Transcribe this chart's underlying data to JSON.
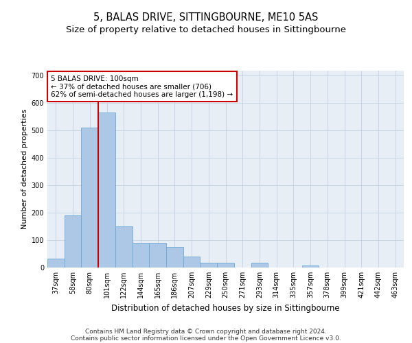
{
  "title": "5, BALAS DRIVE, SITTINGBOURNE, ME10 5AS",
  "subtitle": "Size of property relative to detached houses in Sittingbourne",
  "xlabel": "Distribution of detached houses by size in Sittingbourne",
  "ylabel": "Number of detached properties",
  "categories": [
    "37sqm",
    "58sqm",
    "80sqm",
    "101sqm",
    "122sqm",
    "144sqm",
    "165sqm",
    "186sqm",
    "207sqm",
    "229sqm",
    "250sqm",
    "271sqm",
    "293sqm",
    "314sqm",
    "335sqm",
    "357sqm",
    "378sqm",
    "399sqm",
    "421sqm",
    "442sqm",
    "463sqm"
  ],
  "values": [
    32,
    190,
    510,
    565,
    150,
    90,
    90,
    75,
    40,
    18,
    18,
    0,
    18,
    0,
    0,
    8,
    0,
    0,
    0,
    0,
    0
  ],
  "bar_color": "#adc8e6",
  "bar_edge_color": "#6aaad4",
  "vline_color": "#cc0000",
  "vline_x_index": 3,
  "annotation_text": "5 BALAS DRIVE: 100sqm\n← 37% of detached houses are smaller (706)\n62% of semi-detached houses are larger (1,198) →",
  "annotation_box_facecolor": "#ffffff",
  "annotation_box_edgecolor": "#cc0000",
  "ylim": [
    0,
    720
  ],
  "yticks": [
    0,
    100,
    200,
    300,
    400,
    500,
    600,
    700
  ],
  "grid_color": "#c8d4e8",
  "background_color": "#e8eef6",
  "footer_line1": "Contains HM Land Registry data © Crown copyright and database right 2024.",
  "footer_line2": "Contains public sector information licensed under the Open Government Licence v3.0.",
  "title_fontsize": 10.5,
  "subtitle_fontsize": 9.5,
  "xlabel_fontsize": 8.5,
  "ylabel_fontsize": 8,
  "tick_fontsize": 7,
  "annotation_fontsize": 7.5,
  "footer_fontsize": 6.5
}
